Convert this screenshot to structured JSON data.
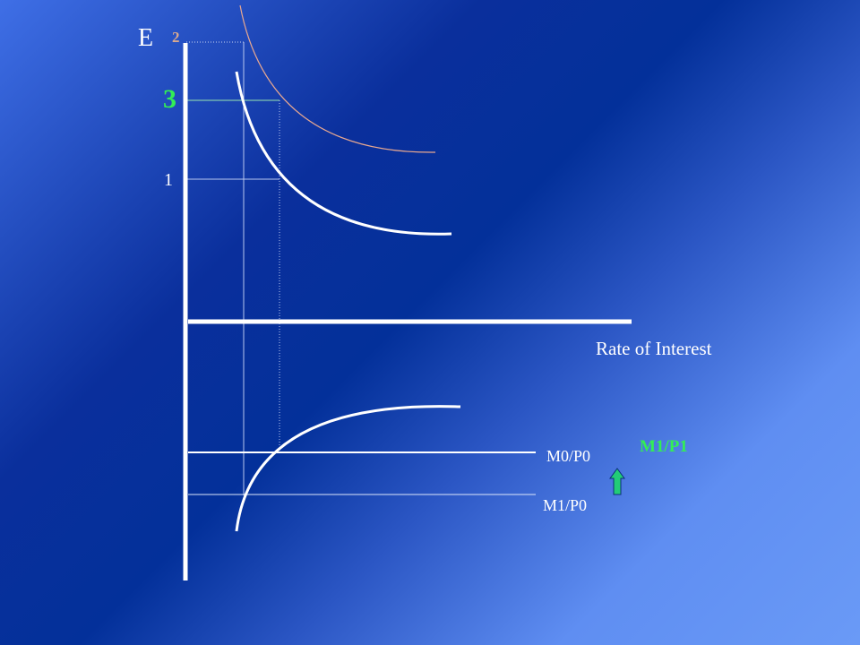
{
  "labels": {
    "vertical_axis": "E",
    "level_2": "2",
    "level_3": "3",
    "level_1": "1",
    "horizontal_axis": "Rate of Interest",
    "money_supply_initial": "M0/P0",
    "money_supply_new": "M1/P0",
    "money_supply_shifted": "M1/P1"
  },
  "colors": {
    "axis": "#ffffff",
    "curve_original": "#ffffff",
    "curve_shifted": "#e8a890",
    "guide_lines": "#b9c8f0",
    "highlight": "#33ee55",
    "arrow_fill": "#22cc77"
  },
  "icons": {
    "shift_arrow": "up-arrow-icon"
  }
}
